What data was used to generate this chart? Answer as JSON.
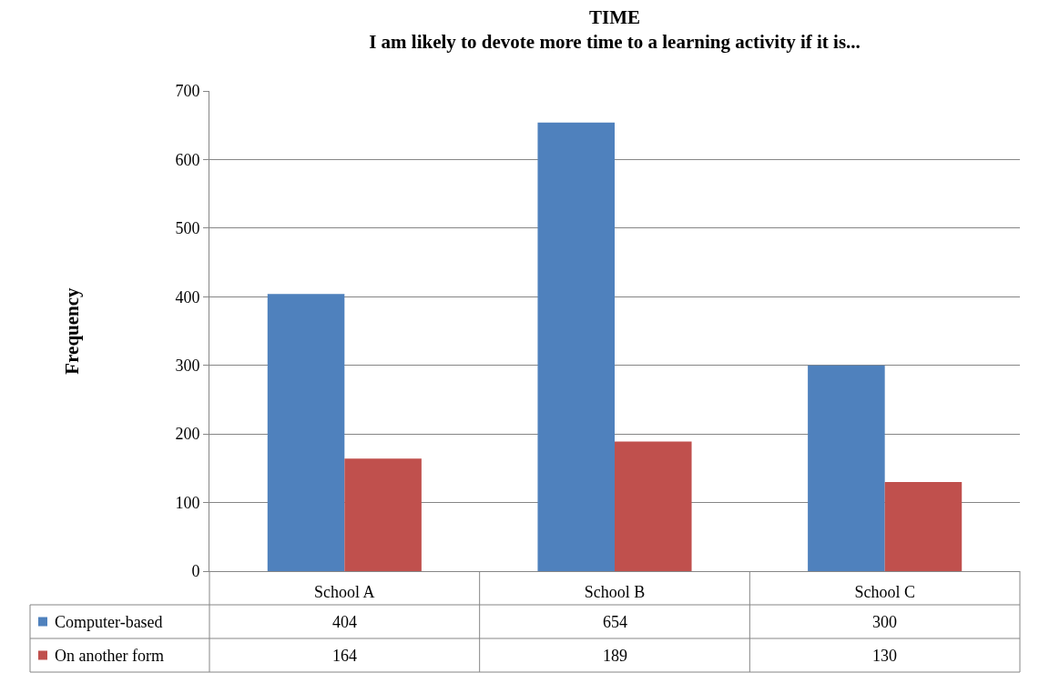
{
  "chart_data": {
    "type": "bar",
    "title": "TIME",
    "subtitle": "I am likely to devote more time to a learning activity if it is...",
    "ylabel": "Frequency",
    "categories": [
      "School A",
      "School B",
      "School C"
    ],
    "series": [
      {
        "name": "Computer-based",
        "color": "#4f81bd",
        "values": [
          404,
          654,
          300
        ]
      },
      {
        "name": "On another form",
        "color": "#c0504d",
        "values": [
          164,
          189,
          130
        ]
      }
    ],
    "ylim": [
      0,
      700
    ],
    "yticks": [
      0,
      100,
      200,
      300,
      400,
      500,
      600,
      700
    ],
    "grid": "y",
    "legend": "bottom",
    "data_labels": true
  }
}
